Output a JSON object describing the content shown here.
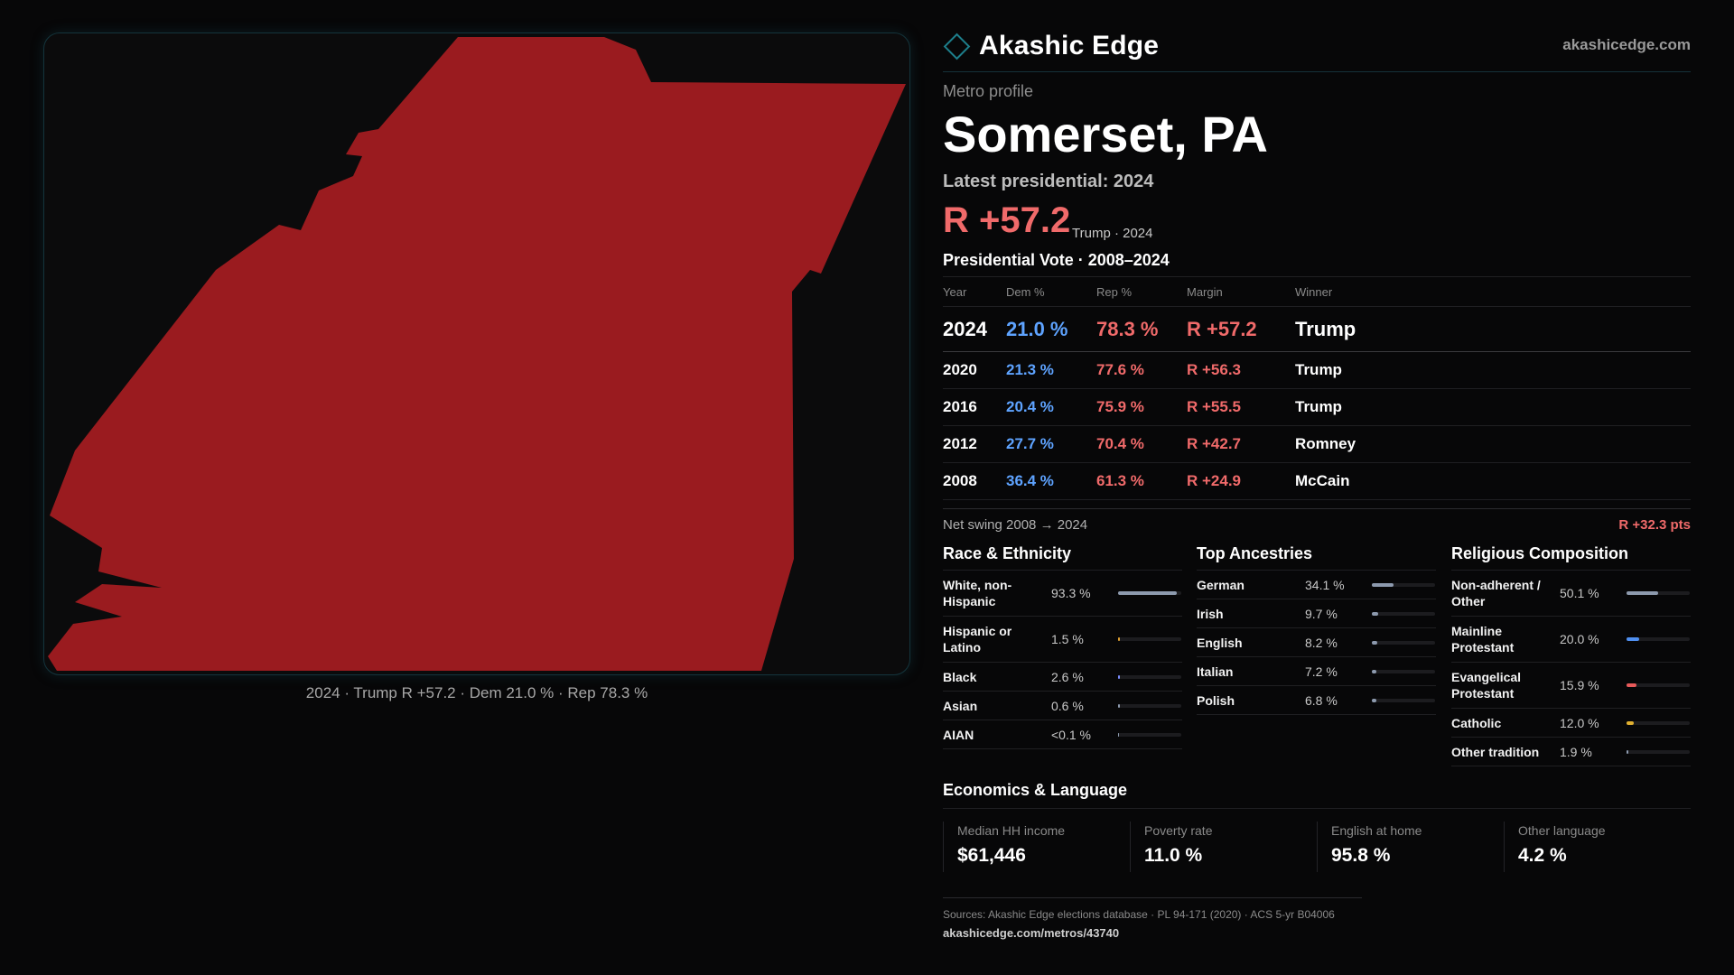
{
  "brand": {
    "name": "Akashic Edge",
    "site": "akashicedge.com",
    "logo_icon": "diamond-outline-icon",
    "accent": "#1d7f8c"
  },
  "map": {
    "fill": "#9a1b1f",
    "caption": "2024 · Trump R +57.2 · Dem 21.0 % · Rep 78.3 %"
  },
  "header": {
    "profile_label": "Metro profile",
    "title": "Somerset, PA",
    "latest_label": "Latest presidential: 2024",
    "latest_margin": "R +57.2",
    "latest_sub": "Trump · 2024"
  },
  "votes": {
    "title": "Presidential Vote · 2008–2024",
    "headers": [
      "Year",
      "Dem %",
      "Rep %",
      "Margin",
      "Winner"
    ],
    "rows": [
      {
        "year": "2024",
        "dem": "21.0 %",
        "rep": "78.3 %",
        "margin": "R +57.2",
        "winner": "Trump"
      },
      {
        "year": "2020",
        "dem": "21.3 %",
        "rep": "77.6 %",
        "margin": "R +56.3",
        "winner": "Trump"
      },
      {
        "year": "2016",
        "dem": "20.4 %",
        "rep": "75.9 %",
        "margin": "R +55.5",
        "winner": "Trump"
      },
      {
        "year": "2012",
        "dem": "27.7 %",
        "rep": "70.4 %",
        "margin": "R +42.7",
        "winner": "Romney"
      },
      {
        "year": "2008",
        "dem": "36.4 %",
        "rep": "61.3 %",
        "margin": "R +24.9",
        "winner": "McCain"
      }
    ],
    "swing_label": "Net swing 2008 → 2024",
    "swing_value": "R +32.3 pts"
  },
  "race": {
    "title": "Race & Ethnicity",
    "items": [
      {
        "label": "White, non-Hispanic",
        "value": "93.3 %",
        "share": 0.933,
        "color": "#8d9aae"
      },
      {
        "label": "Hispanic or Latino",
        "value": "1.5 %",
        "share": 0.015,
        "color": "#e0a030"
      },
      {
        "label": "Black",
        "value": "2.6 %",
        "share": 0.026,
        "color": "#7a8cff"
      },
      {
        "label": "Asian",
        "value": "0.6 %",
        "share": 0.006,
        "color": "#8d9aae"
      },
      {
        "label": "AIAN",
        "value": "<0.1 %",
        "share": 0.0,
        "color": "#8d9aae"
      }
    ]
  },
  "ancestry": {
    "title": "Top Ancestries",
    "items": [
      {
        "label": "German",
        "value": "34.1 %",
        "share": 0.341,
        "color": "#8d9aae"
      },
      {
        "label": "Irish",
        "value": "9.7 %",
        "share": 0.097,
        "color": "#8d9aae"
      },
      {
        "label": "English",
        "value": "8.2 %",
        "share": 0.082,
        "color": "#8d9aae"
      },
      {
        "label": "Italian",
        "value": "7.2 %",
        "share": 0.072,
        "color": "#8d9aae"
      },
      {
        "label": "Polish",
        "value": "6.8 %",
        "share": 0.068,
        "color": "#8d9aae"
      }
    ]
  },
  "religion": {
    "title": "Religious Composition",
    "items": [
      {
        "label": "Non-adherent / Other",
        "value": "50.1 %",
        "share": 0.501,
        "color": "#8d9aae"
      },
      {
        "label": "Mainline Protestant",
        "value": "20.0 %",
        "share": 0.2,
        "color": "#4f8ff0"
      },
      {
        "label": "Evangelical Protestant",
        "value": "15.9 %",
        "share": 0.159,
        "color": "#e85a5a"
      },
      {
        "label": "Catholic",
        "value": "12.0 %",
        "share": 0.12,
        "color": "#e0b030"
      },
      {
        "label": "Other tradition",
        "value": "1.9 %",
        "share": 0.019,
        "color": "#8d9aae"
      }
    ]
  },
  "economics": {
    "title": "Economics & Language",
    "items": [
      {
        "label": "Median HH income",
        "value": "$61,446"
      },
      {
        "label": "Poverty rate",
        "value": "11.0 %"
      },
      {
        "label": "English at home",
        "value": "95.8 %"
      },
      {
        "label": "Other language",
        "value": "4.2 %"
      }
    ]
  },
  "footer": {
    "sources": "Sources: Akashic Edge elections database · PL 94-171 (2020) · ACS 5-yr B04006",
    "url": "akashicedge.com/metros/43740"
  }
}
